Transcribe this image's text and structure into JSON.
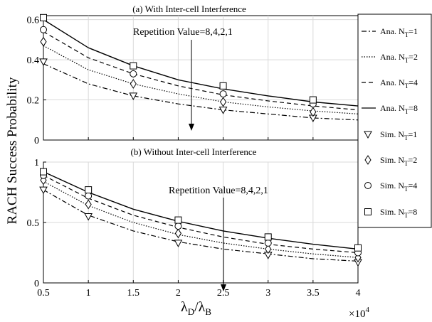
{
  "figure": {
    "ylabel": "RACH Success Probability",
    "xlabel_main": "λ",
    "xlabel_sub_d": "D",
    "xlabel_slash": "/λ",
    "xlabel_sub_b": "B",
    "x_exponent_label": "×10",
    "x_exponent_power": "4"
  },
  "legend": {
    "entries": [
      {
        "label": "Ana. N",
        "sub": "T",
        "suffix": "=1",
        "kind": "line",
        "dash": "dashdot"
      },
      {
        "label": "Ana. N",
        "sub": "T",
        "suffix": "=2",
        "kind": "line",
        "dash": "dotted"
      },
      {
        "label": "Ana. N",
        "sub": "T",
        "suffix": "=4",
        "kind": "line",
        "dash": "dashed"
      },
      {
        "label": "Ana. N",
        "sub": "T",
        "suffix": "=8",
        "kind": "line",
        "dash": "solid"
      },
      {
        "label": "Sim. N",
        "sub": "T",
        "suffix": "=1",
        "kind": "marker",
        "marker": "triangle-down"
      },
      {
        "label": "Sim. N",
        "sub": "T",
        "suffix": "=2",
        "kind": "marker",
        "marker": "diamond"
      },
      {
        "label": "Sim. N",
        "sub": "T",
        "suffix": "=4",
        "kind": "marker",
        "marker": "circle"
      },
      {
        "label": "Sim. N",
        "sub": "T",
        "suffix": "=8",
        "kind": "marker",
        "marker": "square"
      }
    ]
  },
  "chart_data": [
    {
      "type": "line",
      "title": "(a) With Inter-cell Interference",
      "annotation": "Repetition Value=8,4,2,1",
      "x_ticks": [
        "0.5",
        "1",
        "1.5",
        "2",
        "2.5",
        "3",
        "3.5",
        "4"
      ],
      "y_ticks": [
        "0",
        "0.2",
        "0.4",
        "0.6"
      ],
      "xlim": [
        0.5,
        4
      ],
      "ylim": [
        0,
        0.62
      ],
      "x_scale": "×10^4",
      "grid": true,
      "x": [
        0.5,
        1,
        1.5,
        2,
        2.5,
        3,
        3.5,
        4
      ],
      "series": [
        {
          "name": "Ana. N_T=1",
          "values": [
            0.38,
            0.28,
            0.22,
            0.18,
            0.15,
            0.13,
            0.11,
            0.1
          ]
        },
        {
          "name": "Ana. N_T=2",
          "values": [
            0.47,
            0.35,
            0.28,
            0.23,
            0.19,
            0.165,
            0.145,
            0.13
          ]
        },
        {
          "name": "Ana. N_T=4",
          "values": [
            0.54,
            0.41,
            0.33,
            0.27,
            0.225,
            0.195,
            0.17,
            0.15
          ]
        },
        {
          "name": "Ana. N_T=8",
          "values": [
            0.6,
            0.46,
            0.37,
            0.3,
            0.255,
            0.22,
            0.19,
            0.17
          ]
        }
      ],
      "sim_x": [
        0.5,
        1.5,
        2.5,
        3.5
      ],
      "sim_series": [
        {
          "name": "Sim. N_T=1",
          "values": [
            0.39,
            0.22,
            0.15,
            0.11
          ]
        },
        {
          "name": "Sim. N_T=2",
          "values": [
            0.49,
            0.28,
            0.19,
            0.14
          ]
        },
        {
          "name": "Sim. N_T=4",
          "values": [
            0.55,
            0.33,
            0.23,
            0.18
          ]
        },
        {
          "name": "Sim. N_T=8",
          "values": [
            0.61,
            0.37,
            0.27,
            0.2
          ]
        }
      ]
    },
    {
      "type": "line",
      "title": "(b) Without Inter-cell Interference",
      "annotation": "Repetition Value=8,4,2,1",
      "x_ticks": [
        "0.5",
        "1",
        "1.5",
        "2",
        "2.5",
        "3",
        "3.5",
        "4"
      ],
      "y_ticks": [
        "0",
        "0.5",
        "1"
      ],
      "xlim": [
        0.5,
        4
      ],
      "ylim": [
        0,
        1
      ],
      "x_scale": "×10^4",
      "grid": true,
      "x": [
        0.5,
        1,
        1.5,
        2,
        2.5,
        3,
        3.5,
        4
      ],
      "series": [
        {
          "name": "Ana. N_T=1",
          "values": [
            0.77,
            0.56,
            0.43,
            0.34,
            0.28,
            0.24,
            0.2,
            0.18
          ]
        },
        {
          "name": "Ana. N_T=2",
          "values": [
            0.84,
            0.64,
            0.5,
            0.4,
            0.33,
            0.28,
            0.24,
            0.21
          ]
        },
        {
          "name": "Ana. N_T=4",
          "values": [
            0.89,
            0.7,
            0.56,
            0.46,
            0.38,
            0.32,
            0.28,
            0.25
          ]
        },
        {
          "name": "Ana. N_T=8",
          "values": [
            0.92,
            0.75,
            0.61,
            0.51,
            0.43,
            0.37,
            0.32,
            0.28
          ]
        }
      ],
      "sim_x": [
        0.5,
        1,
        2,
        3,
        4
      ],
      "sim_series": [
        {
          "name": "Sim. N_T=1",
          "values": [
            0.77,
            0.55,
            0.33,
            0.23,
            0.17
          ]
        },
        {
          "name": "Sim. N_T=2",
          "values": [
            0.85,
            0.65,
            0.41,
            0.28,
            0.21
          ]
        },
        {
          "name": "Sim. N_T=4",
          "values": [
            0.89,
            0.72,
            0.47,
            0.33,
            0.25
          ]
        },
        {
          "name": "Sim. N_T=8",
          "values": [
            0.92,
            0.77,
            0.52,
            0.38,
            0.29
          ]
        }
      ]
    }
  ]
}
